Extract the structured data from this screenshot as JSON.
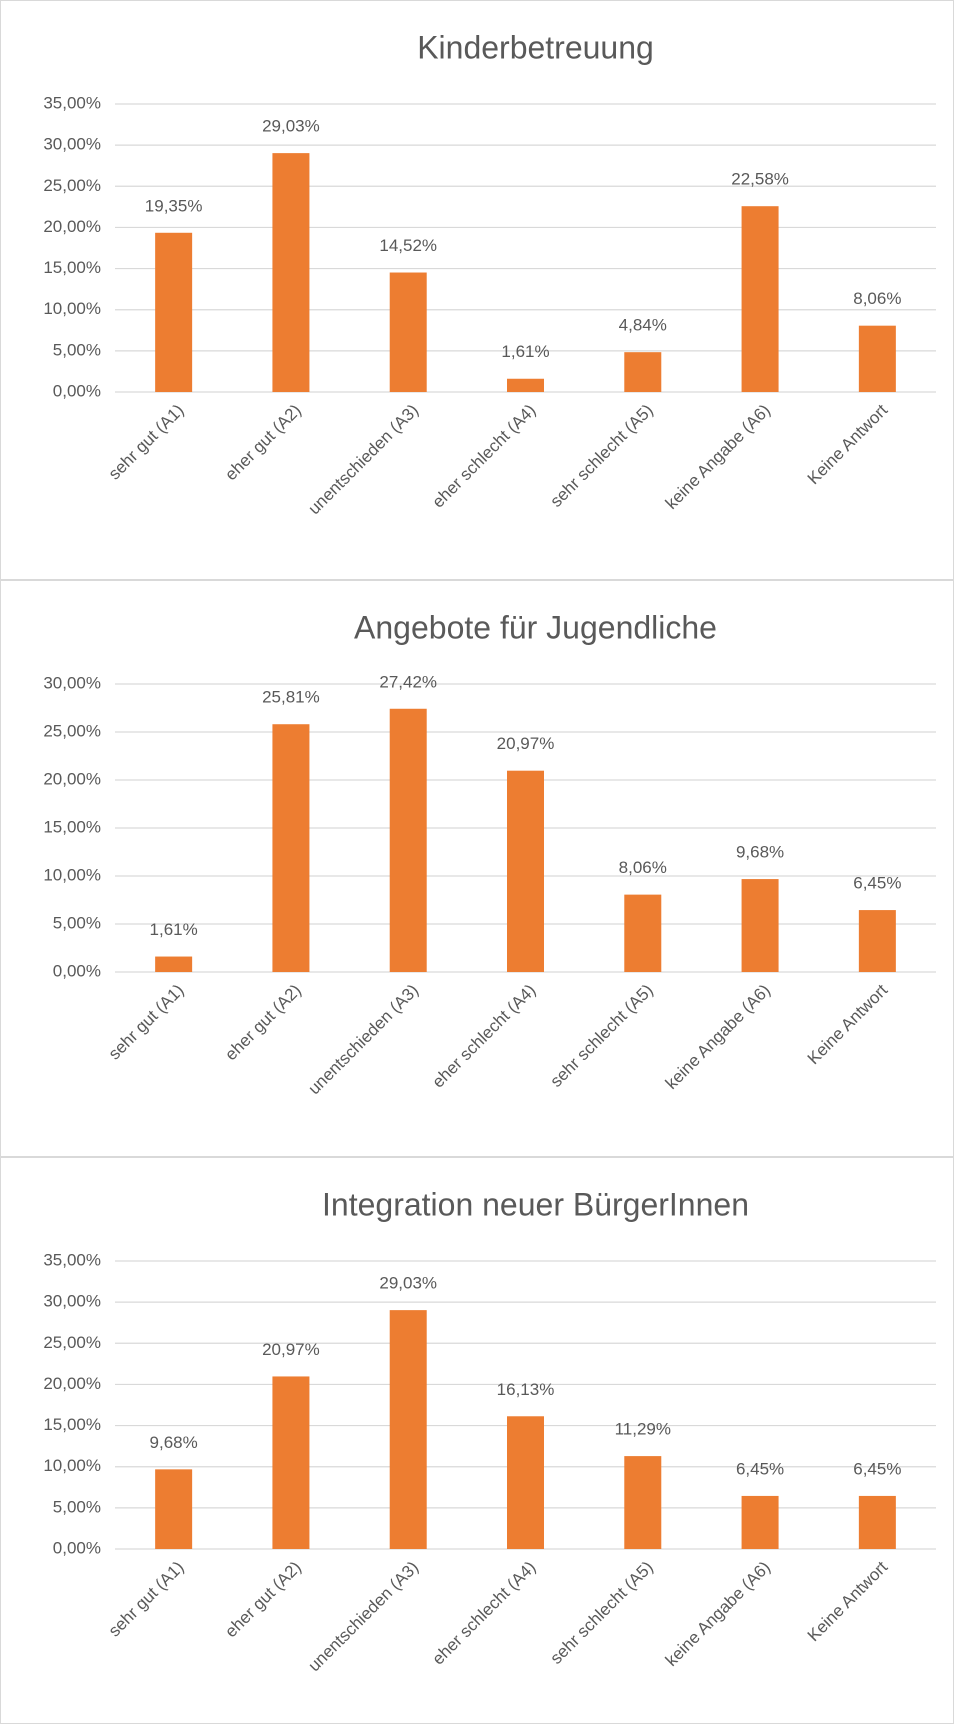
{
  "chart_data": [
    {
      "type": "bar",
      "title": "Kinderbetreuung",
      "categories": [
        "sehr gut (A1)",
        "eher gut (A2)",
        "unentschieden (A3)",
        "eher schlecht (A4)",
        "sehr schlecht (A5)",
        "keine Angabe (A6)",
        "Keine Antwort"
      ],
      "values": [
        19.35,
        29.03,
        14.52,
        1.61,
        4.84,
        22.58,
        8.06
      ],
      "value_labels": [
        "19,35%",
        "29,03%",
        "14,52%",
        "1,61%",
        "4,84%",
        "22,58%",
        "8,06%"
      ],
      "color": "#ed7d31",
      "ylim": [
        0,
        35
      ],
      "yticks": [
        {
          "value": 0,
          "label": "0,00%"
        },
        {
          "value": 5,
          "label": "5,00%"
        },
        {
          "value": 10,
          "label": "10,00%"
        },
        {
          "value": 15,
          "label": "15,00%"
        },
        {
          "value": 20,
          "label": "20,00%"
        },
        {
          "value": 25,
          "label": "25,00%"
        },
        {
          "value": 30,
          "label": "30,00%"
        },
        {
          "value": 35,
          "label": "35,00%"
        }
      ],
      "grid": true
    },
    {
      "type": "bar",
      "title": "Angebote für Jugendliche",
      "categories": [
        "sehr gut (A1)",
        "eher gut (A2)",
        "unentschieden (A3)",
        "eher schlecht (A4)",
        "sehr schlecht (A5)",
        "keine Angabe (A6)",
        "Keine Antwort"
      ],
      "values": [
        1.61,
        25.81,
        27.42,
        20.97,
        8.06,
        9.68,
        6.45
      ],
      "value_labels": [
        "1,61%",
        "25,81%",
        "27,42%",
        "20,97%",
        "8,06%",
        "9,68%",
        "6,45%"
      ],
      "color": "#ed7d31",
      "ylim": [
        0,
        30
      ],
      "yticks": [
        {
          "value": 0,
          "label": "0,00%"
        },
        {
          "value": 5,
          "label": "5,00%"
        },
        {
          "value": 10,
          "label": "10,00%"
        },
        {
          "value": 15,
          "label": "15,00%"
        },
        {
          "value": 20,
          "label": "20,00%"
        },
        {
          "value": 25,
          "label": "25,00%"
        },
        {
          "value": 30,
          "label": "30,00%"
        }
      ],
      "grid": true
    },
    {
      "type": "bar",
      "title": "Integration neuer BürgerInnen",
      "categories": [
        "sehr gut (A1)",
        "eher gut (A2)",
        "unentschieden (A3)",
        "eher schlecht (A4)",
        "sehr schlecht (A5)",
        "keine Angabe (A6)",
        "Keine Antwort"
      ],
      "values": [
        9.68,
        20.97,
        29.03,
        16.13,
        11.29,
        6.45,
        6.45
      ],
      "value_labels": [
        "9,68%",
        "20,97%",
        "29,03%",
        "16,13%",
        "11,29%",
        "6,45%",
        "6,45%"
      ],
      "color": "#ed7d31",
      "ylim": [
        0,
        35
      ],
      "yticks": [
        {
          "value": 0,
          "label": "0,00%"
        },
        {
          "value": 5,
          "label": "5,00%"
        },
        {
          "value": 10,
          "label": "10,00%"
        },
        {
          "value": 15,
          "label": "15,00%"
        },
        {
          "value": 20,
          "label": "20,00%"
        },
        {
          "value": 25,
          "label": "25,00%"
        },
        {
          "value": 30,
          "label": "30,00%"
        },
        {
          "value": 35,
          "label": "35,00%"
        }
      ],
      "grid": true
    }
  ]
}
